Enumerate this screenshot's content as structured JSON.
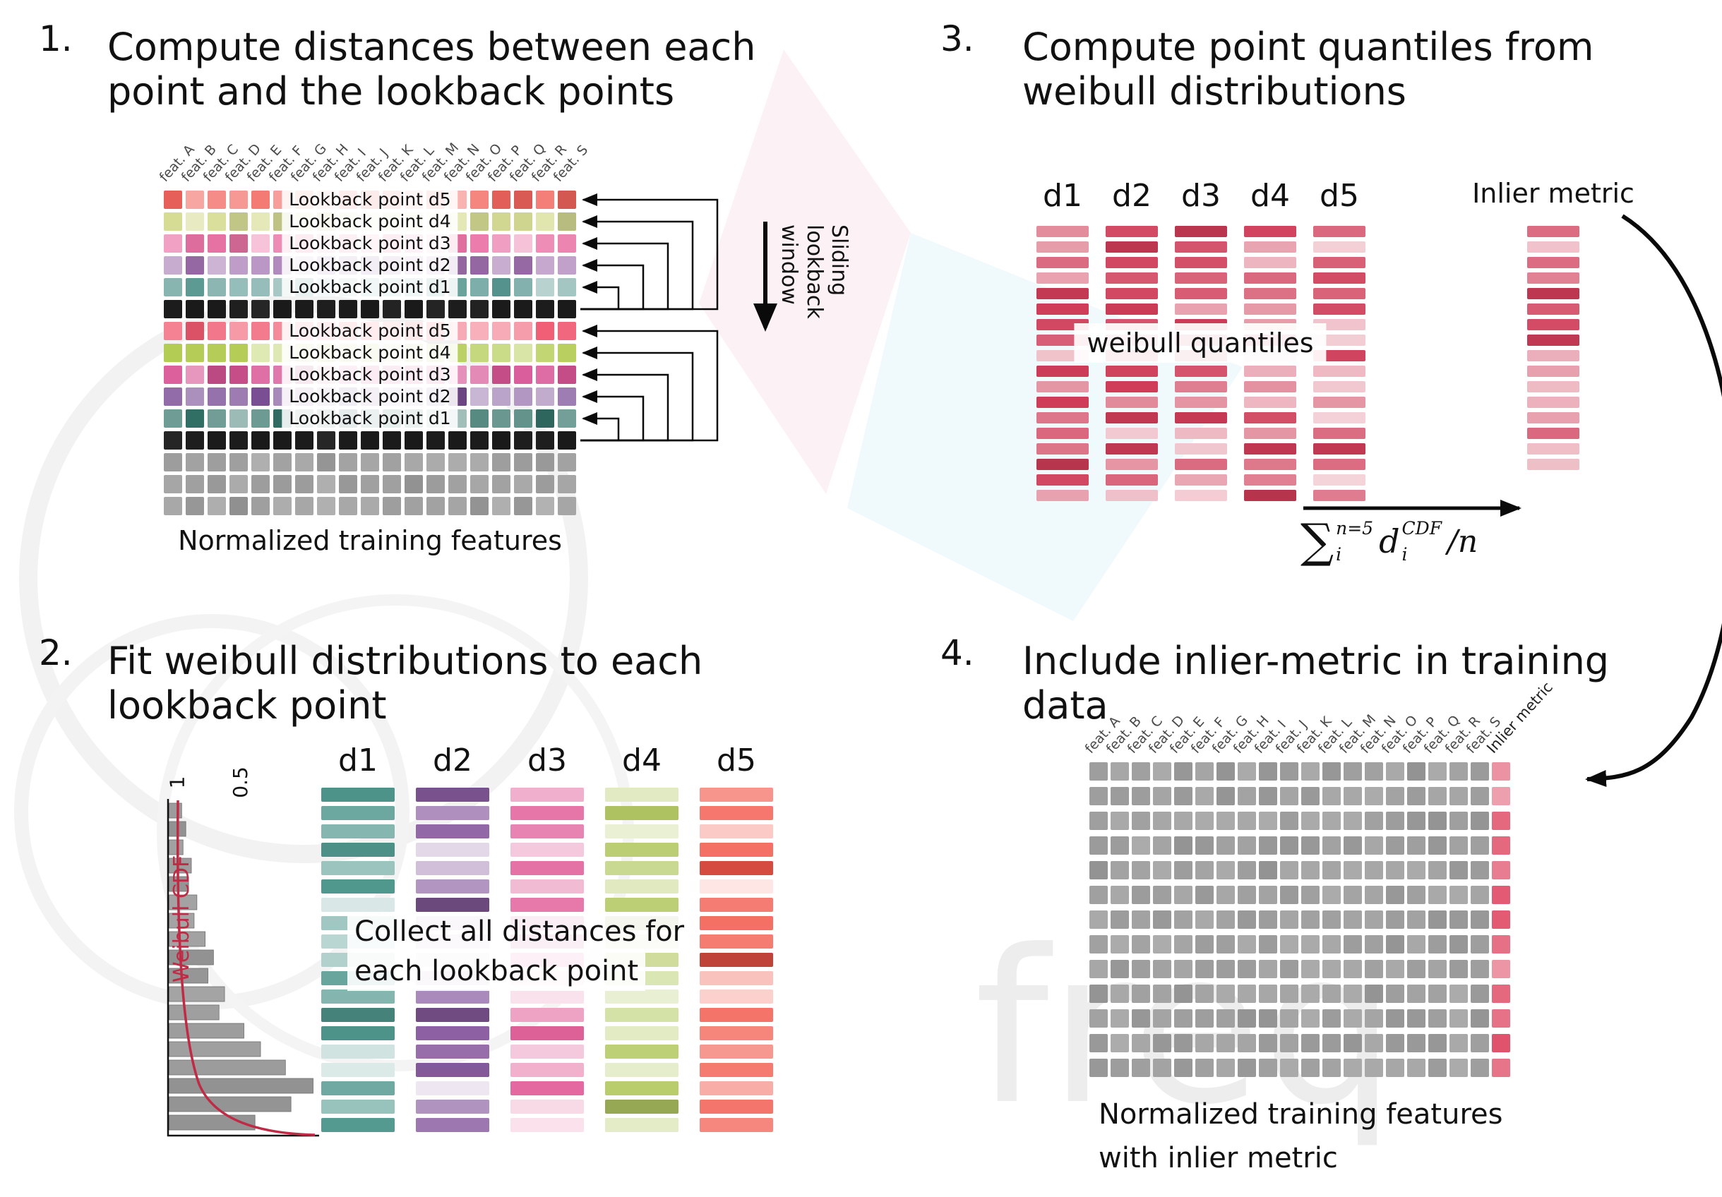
{
  "watermark": {
    "text": "freq"
  },
  "p1": {
    "number": "1.",
    "title_lines": [
      "Compute distances between each",
      "point and the lookback points"
    ],
    "caption": "Normalized training features",
    "sliding_lines": [
      "Sliding",
      "lookback",
      "window"
    ],
    "features": [
      "feat. A",
      "feat. B",
      "feat. C",
      "feat. D",
      "feat. E",
      "feat. F",
      "feat. G",
      "feat. H",
      "feat. I",
      "feat. J",
      "feat. K",
      "feat. L",
      "feat. M",
      "feat. N",
      "feat. O",
      "feat. P",
      "feat. Q",
      "feat. R",
      "feat. S"
    ],
    "grid": {
      "cols": 19,
      "rows": [
        {
          "type": "color",
          "base": "#f2655e",
          "label": "Lookback point d5"
        },
        {
          "type": "color",
          "base": "#d8dd95",
          "label": "Lookback point d4"
        },
        {
          "type": "color",
          "base": "#ea74a6",
          "label": "Lookback point d3"
        },
        {
          "type": "color",
          "base": "#a06fae",
          "label": "Lookback point d2"
        },
        {
          "type": "color",
          "base": "#579690",
          "label": "Lookback point d1"
        },
        {
          "type": "black"
        },
        {
          "type": "color",
          "base": "#f05a71",
          "label": "Lookback point d5"
        },
        {
          "type": "color",
          "base": "#afc94a",
          "label": "Lookback point d4"
        },
        {
          "type": "color",
          "base": "#d85595",
          "label": "Lookback point d3"
        },
        {
          "type": "color",
          "base": "#7d5198",
          "label": "Lookback point d2"
        },
        {
          "type": "color",
          "base": "#337268",
          "label": "Lookback point d1"
        },
        {
          "type": "black"
        },
        {
          "type": "gray"
        },
        {
          "type": "gray"
        },
        {
          "type": "gray"
        }
      ]
    }
  },
  "p2": {
    "number": "2.",
    "title_lines": [
      "Fit weibull distributions to each",
      "lookback point"
    ],
    "hist": {
      "axis_labels": [
        "1",
        "0.5"
      ],
      "curve_label": "Weibull CDF",
      "curve_color": "#bf2b45",
      "values": [
        0.05,
        0.08,
        0.06,
        0.12,
        0.1,
        0.16,
        0.14,
        0.22,
        0.28,
        0.24,
        0.36,
        0.32,
        0.5,
        0.62,
        0.8,
        1.0,
        0.84,
        0.58
      ]
    },
    "columns": [
      {
        "label": "d1",
        "base": "#4f968d"
      },
      {
        "label": "d2",
        "base": "#8a5da0"
      },
      {
        "label": "d3",
        "base": "#e2629b"
      },
      {
        "label": "d4",
        "base": "#b5ca66"
      },
      {
        "label": "d5",
        "base": "#f25548"
      }
    ],
    "bars_per_column": 19,
    "overlay_lines": [
      "Collect all distances for",
      "each lookback point"
    ]
  },
  "p3": {
    "number": "3.",
    "title_lines": [
      "Compute point quantiles from",
      "weibull distributions"
    ],
    "column_labels": [
      "d1",
      "d2",
      "d3",
      "d4",
      "d5"
    ],
    "bar_base": "#cf3c58",
    "bars_per_column": 18,
    "overlay": "weibull quantiles",
    "inlier_label": "Inlier metric",
    "inlier_bars": 16,
    "formula": {
      "sum": "∑",
      "sum_sup": "n=5",
      "sum_sub": "i",
      "var": "d",
      "var_sup": "CDF",
      "var_sub": "i",
      "tail": "/n"
    }
  },
  "p4": {
    "number": "4.",
    "title_lines": [
      "Include inlier-metric in training",
      "data"
    ],
    "features": [
      "feat. A",
      "feat. B",
      "feat. C",
      "feat. D",
      "feat. E",
      "feat. F",
      "feat. G",
      "feat. H",
      "feat. I",
      "feat. J",
      "feat. K",
      "feat. L",
      "feat. M",
      "feat. N",
      "feat. O",
      "feat. P",
      "feat. Q",
      "feat. R",
      "feat. S",
      "Inlier metric"
    ],
    "grid": {
      "cols": 20,
      "rows": 13,
      "gray": "#9c9c9c",
      "inlier_base": "#e0516b"
    },
    "caption_lines": [
      "Normalized training features",
      "with inlier metric"
    ]
  }
}
